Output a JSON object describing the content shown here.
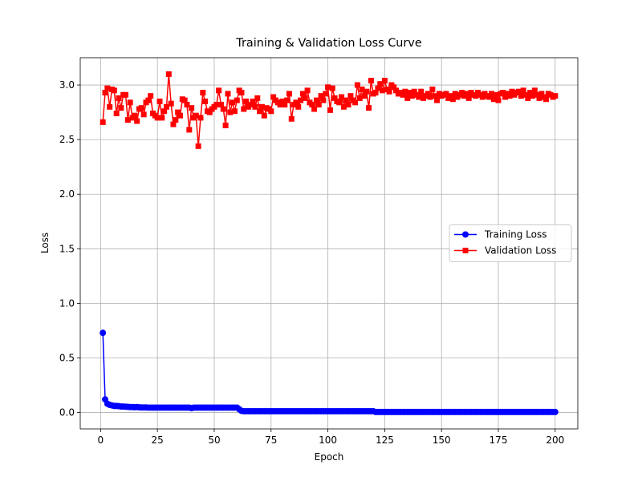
{
  "chart_data": {
    "type": "line",
    "title": "Training & Validation Loss Curve",
    "x_label": "Epoch",
    "y_label": "Loss",
    "x": [
      1,
      2,
      3,
      4,
      5,
      6,
      7,
      8,
      9,
      10,
      11,
      12,
      13,
      14,
      15,
      16,
      17,
      18,
      19,
      20,
      21,
      22,
      23,
      24,
      25,
      26,
      27,
      28,
      29,
      30,
      31,
      32,
      33,
      34,
      35,
      36,
      37,
      38,
      39,
      40,
      41,
      42,
      43,
      44,
      45,
      46,
      47,
      48,
      49,
      50,
      51,
      52,
      53,
      54,
      55,
      56,
      57,
      58,
      59,
      60,
      61,
      62,
      63,
      64,
      65,
      66,
      67,
      68,
      69,
      70,
      71,
      72,
      73,
      74,
      75,
      76,
      77,
      78,
      79,
      80,
      81,
      82,
      83,
      84,
      85,
      86,
      87,
      88,
      89,
      90,
      91,
      92,
      93,
      94,
      95,
      96,
      97,
      98,
      99,
      100,
      101,
      102,
      103,
      104,
      105,
      106,
      107,
      108,
      109,
      110,
      111,
      112,
      113,
      114,
      115,
      116,
      117,
      118,
      119,
      120,
      121,
      122,
      123,
      124,
      125,
      126,
      127,
      128,
      129,
      130,
      131,
      132,
      133,
      134,
      135,
      136,
      137,
      138,
      139,
      140,
      141,
      142,
      143,
      144,
      145,
      146,
      147,
      148,
      149,
      150,
      151,
      152,
      153,
      154,
      155,
      156,
      157,
      158,
      159,
      160,
      161,
      162,
      163,
      164,
      165,
      166,
      167,
      168,
      169,
      170,
      171,
      172,
      173,
      174,
      175,
      176,
      177,
      178,
      179,
      180,
      181,
      182,
      183,
      184,
      185,
      186,
      187,
      188,
      189,
      190,
      191,
      192,
      193,
      194,
      195,
      196,
      197,
      198,
      199,
      200
    ],
    "series": [
      {
        "name": "Training Loss",
        "color": "#0000ff",
        "marker": "circle",
        "values": [
          0.73,
          0.12,
          0.08,
          0.07,
          0.065,
          0.06,
          0.06,
          0.058,
          0.055,
          0.055,
          0.053,
          0.052,
          0.05,
          0.05,
          0.048,
          0.05,
          0.047,
          0.046,
          0.046,
          0.046,
          0.045,
          0.045,
          0.045,
          0.045,
          0.045,
          0.045,
          0.045,
          0.045,
          0.045,
          0.045,
          0.045,
          0.045,
          0.045,
          0.045,
          0.045,
          0.045,
          0.045,
          0.045,
          0.045,
          0.04,
          0.045,
          0.045,
          0.045,
          0.045,
          0.045,
          0.045,
          0.045,
          0.045,
          0.045,
          0.045,
          0.045,
          0.045,
          0.045,
          0.045,
          0.045,
          0.045,
          0.045,
          0.045,
          0.045,
          0.045,
          0.03,
          0.015,
          0.012,
          0.012,
          0.012,
          0.012,
          0.012,
          0.012,
          0.012,
          0.012,
          0.012,
          0.012,
          0.012,
          0.012,
          0.012,
          0.012,
          0.012,
          0.012,
          0.012,
          0.012,
          0.012,
          0.012,
          0.012,
          0.012,
          0.012,
          0.012,
          0.012,
          0.012,
          0.012,
          0.012,
          0.012,
          0.012,
          0.012,
          0.012,
          0.012,
          0.012,
          0.012,
          0.012,
          0.012,
          0.012,
          0.012,
          0.012,
          0.012,
          0.012,
          0.012,
          0.012,
          0.012,
          0.012,
          0.012,
          0.012,
          0.012,
          0.012,
          0.012,
          0.012,
          0.012,
          0.012,
          0.012,
          0.012,
          0.012,
          0.012,
          0.005,
          0.005,
          0.005,
          0.005,
          0.005,
          0.005,
          0.005,
          0.005,
          0.005,
          0.005,
          0.005,
          0.005,
          0.005,
          0.005,
          0.005,
          0.005,
          0.005,
          0.005,
          0.005,
          0.005,
          0.005,
          0.005,
          0.005,
          0.005,
          0.005,
          0.005,
          0.005,
          0.005,
          0.005,
          0.005,
          0.005,
          0.005,
          0.005,
          0.005,
          0.005,
          0.005,
          0.005,
          0.005,
          0.005,
          0.005,
          0.005,
          0.005,
          0.005,
          0.005,
          0.005,
          0.005,
          0.005,
          0.005,
          0.005,
          0.005,
          0.005,
          0.005,
          0.005,
          0.005,
          0.005,
          0.005,
          0.005,
          0.005,
          0.005,
          0.005,
          0.005,
          0.005,
          0.005,
          0.005,
          0.005,
          0.005,
          0.005,
          0.005,
          0.005,
          0.005,
          0.005,
          0.005,
          0.005,
          0.005,
          0.005,
          0.005,
          0.005,
          0.005,
          0.005,
          0.005
        ]
      },
      {
        "name": "Validation Loss",
        "color": "#ff0000",
        "marker": "square",
        "values": [
          2.66,
          2.93,
          2.97,
          2.8,
          2.96,
          2.95,
          2.74,
          2.88,
          2.79,
          2.91,
          2.91,
          2.68,
          2.84,
          2.7,
          2.72,
          2.67,
          2.78,
          2.79,
          2.73,
          2.84,
          2.86,
          2.9,
          2.74,
          2.72,
          2.7,
          2.85,
          2.7,
          2.76,
          2.8,
          3.1,
          2.83,
          2.64,
          2.68,
          2.75,
          2.72,
          2.87,
          2.86,
          2.82,
          2.59,
          2.79,
          2.7,
          2.72,
          2.44,
          2.7,
          2.93,
          2.85,
          2.76,
          2.75,
          2.78,
          2.8,
          2.82,
          2.95,
          2.82,
          2.78,
          2.63,
          2.92,
          2.75,
          2.84,
          2.76,
          2.86,
          2.95,
          2.93,
          2.78,
          2.85,
          2.8,
          2.82,
          2.85,
          2.8,
          2.88,
          2.76,
          2.8,
          2.72,
          2.79,
          2.78,
          2.76,
          2.89,
          2.86,
          2.84,
          2.82,
          2.85,
          2.82,
          2.86,
          2.92,
          2.69,
          2.82,
          2.84,
          2.8,
          2.86,
          2.92,
          2.88,
          2.95,
          2.84,
          2.82,
          2.78,
          2.86,
          2.82,
          2.9,
          2.86,
          2.92,
          2.98,
          2.77,
          2.97,
          2.88,
          2.85,
          2.84,
          2.89,
          2.8,
          2.86,
          2.82,
          2.9,
          2.86,
          2.84,
          3.0,
          2.88,
          2.96,
          2.9,
          2.94,
          2.79,
          3.04,
          2.92,
          2.93,
          2.97,
          3.01,
          2.95,
          3.04,
          2.96,
          2.94,
          3.0,
          2.98,
          2.95,
          2.92,
          2.93,
          2.91,
          2.94,
          2.88,
          2.93,
          2.9,
          2.94,
          2.91,
          2.89,
          2.94,
          2.88,
          2.9,
          2.92,
          2.89,
          2.96,
          2.9,
          2.86,
          2.92,
          2.9,
          2.91,
          2.92,
          2.88,
          2.9,
          2.87,
          2.92,
          2.89,
          2.91,
          2.93,
          2.9,
          2.92,
          2.88,
          2.93,
          2.91,
          2.9,
          2.93,
          2.91,
          2.89,
          2.92,
          2.9,
          2.89,
          2.92,
          2.87,
          2.91,
          2.86,
          2.92,
          2.93,
          2.89,
          2.92,
          2.9,
          2.94,
          2.91,
          2.93,
          2.94,
          2.9,
          2.95,
          2.91,
          2.88,
          2.93,
          2.9,
          2.95,
          2.91,
          2.88,
          2.92,
          2.89,
          2.87,
          2.92,
          2.91,
          2.89,
          2.9
        ]
      }
    ],
    "xlim": [
      -8.95,
      209.95
    ],
    "xticks": [
      0,
      25,
      50,
      75,
      100,
      125,
      150,
      175,
      200
    ],
    "ylim": [
      -0.15,
      3.25
    ],
    "yticks": [
      {
        "value": 0,
        "label": "0.0"
      },
      {
        "value": 0.5,
        "label": "0.5"
      },
      {
        "value": 1,
        "label": "1.0"
      },
      {
        "value": 1.5,
        "label": "1.5"
      },
      {
        "value": 2,
        "label": "2.0"
      },
      {
        "value": 2.5,
        "label": "2.5"
      },
      {
        "value": 3,
        "label": "3.0"
      }
    ],
    "grid": true,
    "legend": "center right"
  }
}
